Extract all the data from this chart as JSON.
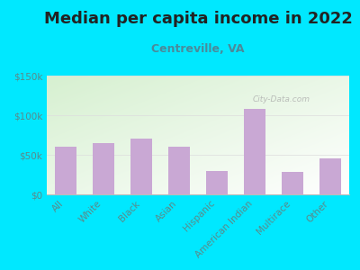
{
  "title": "Median per capita income in 2022",
  "subtitle": "Centreville, VA",
  "categories": [
    "All",
    "White",
    "Black",
    "Asian",
    "Hispanic",
    "American Indian",
    "Multirace",
    "Other"
  ],
  "values": [
    60000,
    65000,
    70000,
    60000,
    30000,
    108000,
    28000,
    46000
  ],
  "bar_color": "#c9a8d4",
  "background_outer": "#00e8ff",
  "title_color": "#222222",
  "subtitle_color": "#4a8a9a",
  "tick_color": "#5a8a8a",
  "ylim": [
    0,
    150000
  ],
  "yticks": [
    0,
    50000,
    100000,
    150000
  ],
  "ytick_labels": [
    "$0",
    "$50k",
    "$100k",
    "$150k"
  ],
  "watermark": "City-Data.com",
  "title_fontsize": 13,
  "subtitle_fontsize": 9,
  "tick_fontsize": 7.5,
  "chart_bg_colors": [
    "#d6f0d0",
    "#eaf7e8",
    "#f5fcf5",
    "#ffffff"
  ],
  "spine_color": "#bbbbbb"
}
